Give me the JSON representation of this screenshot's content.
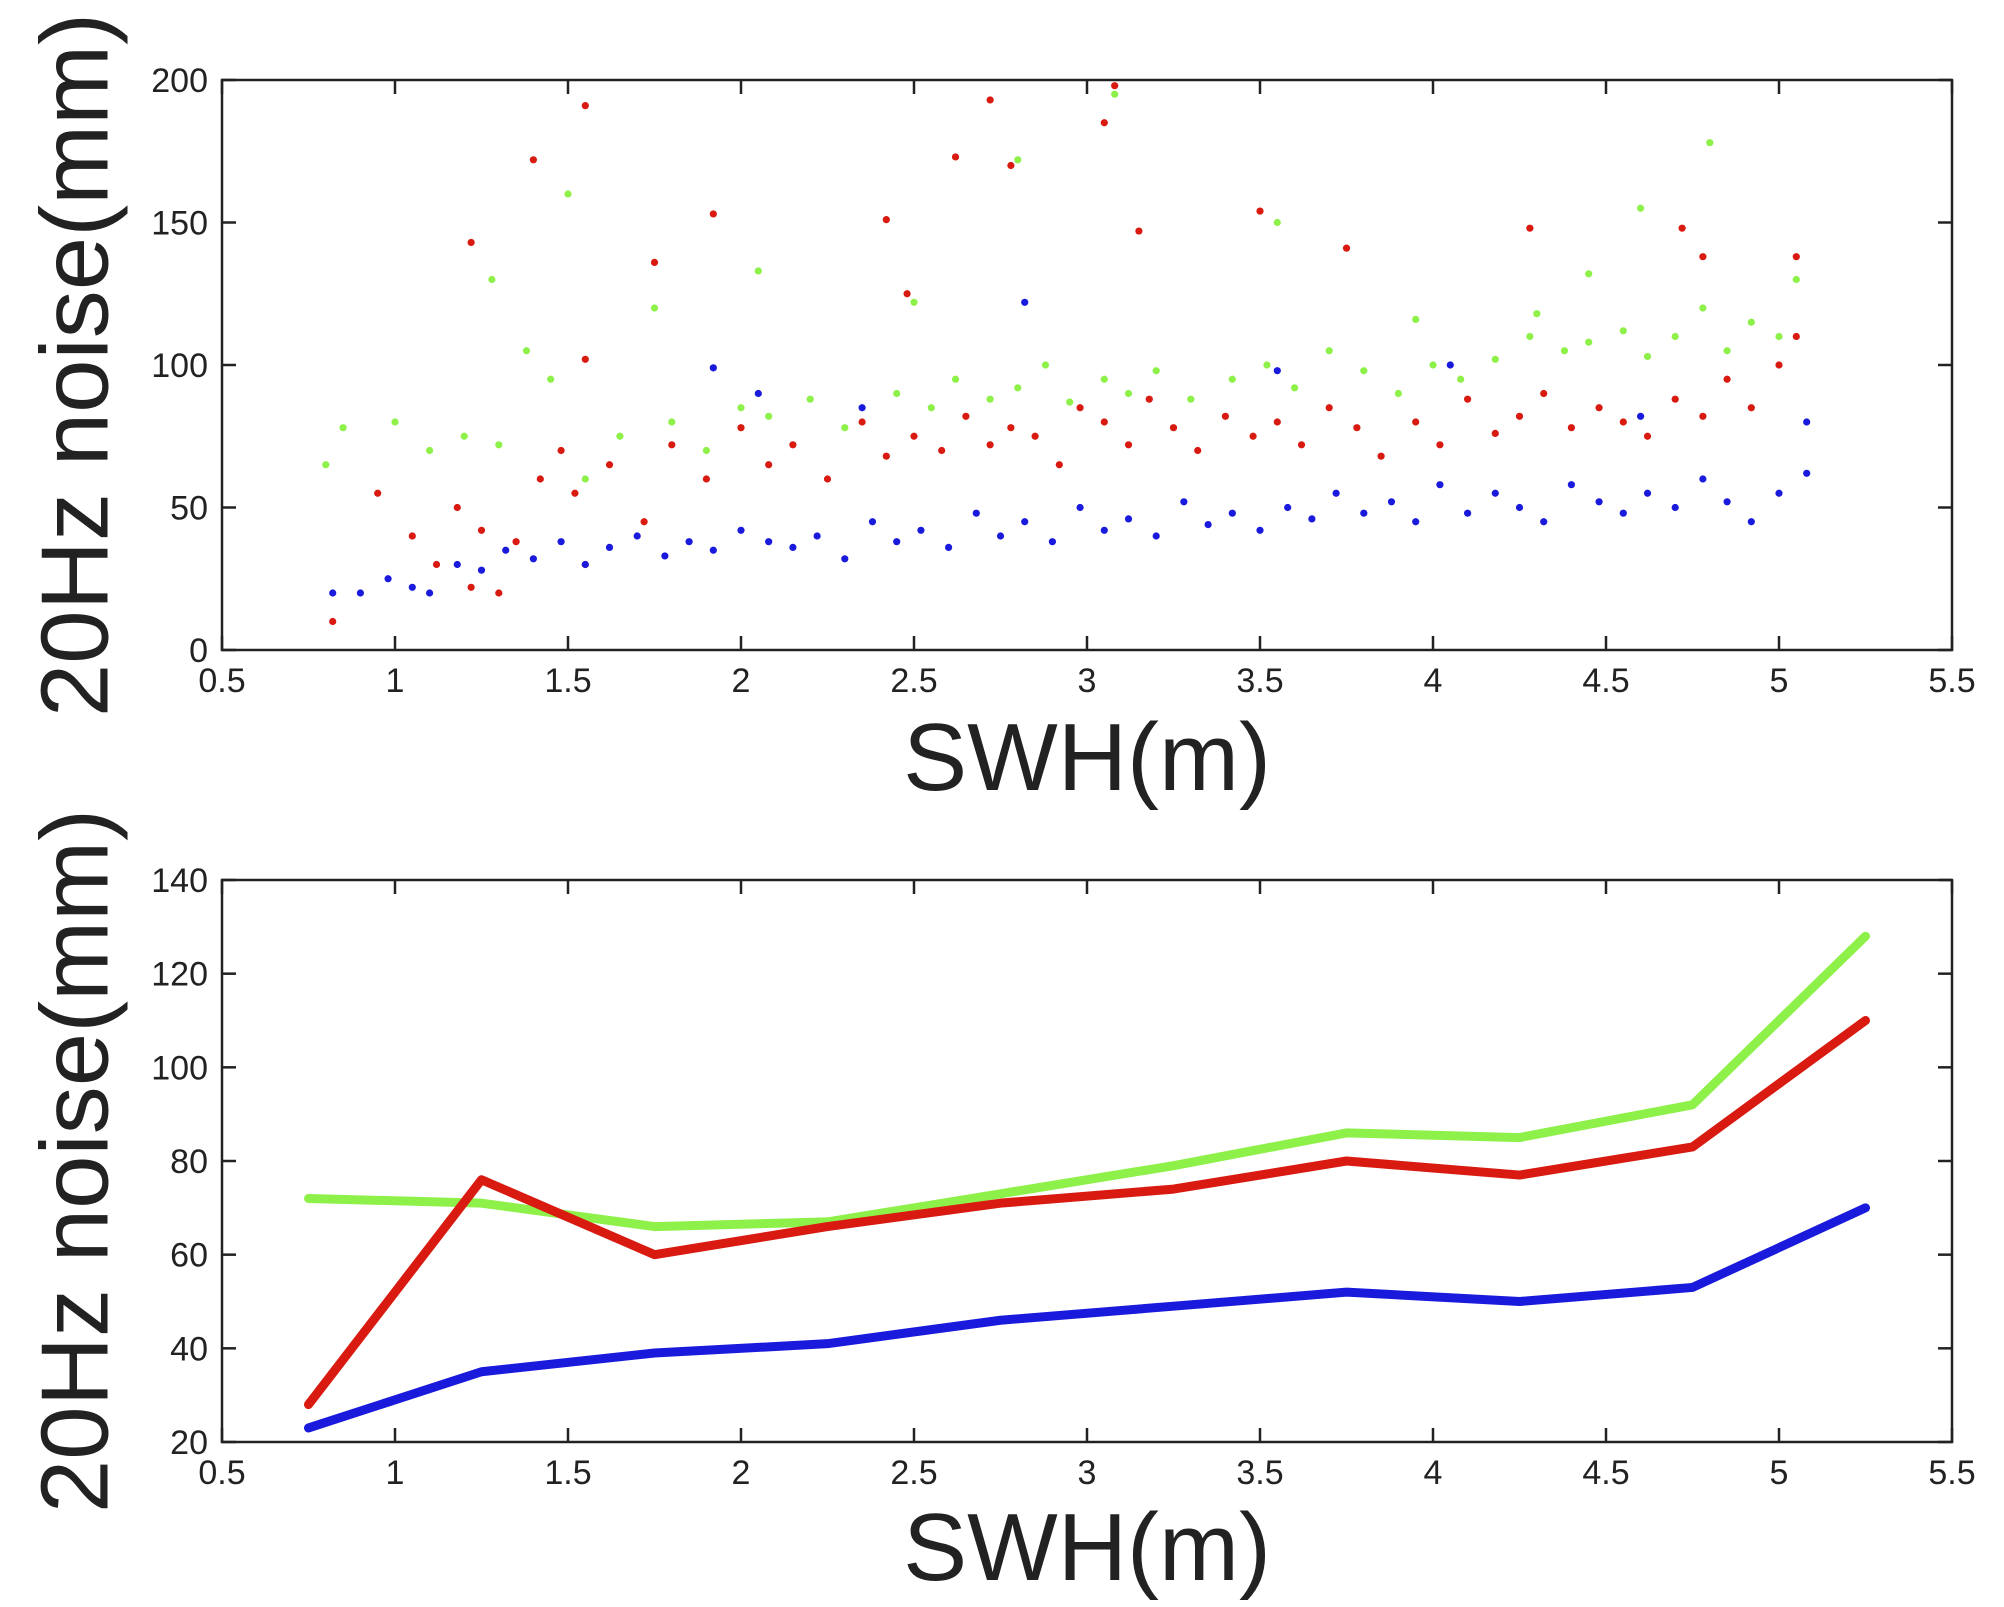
{
  "colors": {
    "green": "#8ef14a",
    "red": "#d81a10",
    "blue": "#1a1adc",
    "axis": "#222222"
  },
  "chart_data": [
    {
      "type": "scatter",
      "title": "",
      "xlabel": "SWH(m)",
      "ylabel": "20Hz noise(mm)",
      "xlim": [
        0.5,
        5.5
      ],
      "ylim": [
        0,
        200
      ],
      "xticks": [
        0.5,
        1,
        1.5,
        2,
        2.5,
        3,
        3.5,
        4,
        4.5,
        5,
        5.5
      ],
      "xtick_labels": [
        "0.5",
        "1",
        "1.5",
        "2",
        "2.5",
        "3",
        "3.5",
        "4",
        "4.5",
        "5",
        "5.5"
      ],
      "yticks": [
        0,
        50,
        100,
        150,
        200
      ],
      "ytick_labels": [
        "0",
        "50",
        "100",
        "150",
        "200"
      ],
      "grid": false,
      "series": [
        {
          "name": "green",
          "color": "#8ef14a",
          "x": [
            0.8,
            0.85,
            1.0,
            1.1,
            1.2,
            1.3,
            1.38,
            1.45,
            1.55,
            1.65,
            1.8,
            1.9,
            2.0,
            2.08,
            2.2,
            2.3,
            2.45,
            2.55,
            2.62,
            2.72,
            2.8,
            2.88,
            2.95,
            3.05,
            3.12,
            3.2,
            3.3,
            3.42,
            3.52,
            3.6,
            3.7,
            3.8,
            3.9,
            4.0,
            4.08,
            4.18,
            4.28,
            4.38,
            4.45,
            4.55,
            4.62,
            4.7,
            4.78,
            4.85,
            4.92,
            5.0,
            5.05,
            1.28,
            1.5,
            2.05,
            2.8,
            3.08,
            3.55,
            4.45,
            4.6,
            4.8,
            4.3,
            3.95,
            2.5,
            1.75
          ],
          "y": [
            65,
            78,
            80,
            70,
            75,
            72,
            105,
            95,
            60,
            75,
            80,
            70,
            85,
            82,
            88,
            78,
            90,
            85,
            95,
            88,
            92,
            100,
            87,
            95,
            90,
            98,
            88,
            95,
            100,
            92,
            105,
            98,
            90,
            100,
            95,
            102,
            110,
            105,
            108,
            112,
            103,
            110,
            120,
            105,
            115,
            110,
            130,
            130,
            160,
            133,
            172,
            195,
            150,
            132,
            155,
            178,
            118,
            116,
            122,
            120
          ]
        },
        {
          "name": "red",
          "color": "#d81a10",
          "x": [
            0.82,
            0.95,
            1.05,
            1.12,
            1.18,
            1.22,
            1.25,
            1.3,
            1.35,
            1.42,
            1.48,
            1.52,
            1.55,
            1.62,
            1.72,
            1.8,
            1.9,
            2.0,
            2.08,
            2.15,
            2.25,
            2.35,
            2.42,
            2.5,
            2.58,
            2.65,
            2.72,
            2.78,
            2.85,
            2.92,
            2.98,
            3.05,
            3.12,
            3.18,
            3.25,
            3.32,
            3.4,
            3.48,
            3.55,
            3.62,
            3.7,
            3.78,
            3.85,
            3.95,
            4.02,
            4.1,
            4.18,
            4.25,
            4.32,
            4.4,
            4.48,
            4.55,
            4.62,
            4.7,
            4.78,
            4.85,
            4.92,
            5.0,
            5.05,
            1.22,
            1.4,
            1.55,
            1.75,
            1.92,
            2.42,
            2.62,
            2.72,
            2.78,
            3.05,
            3.08,
            3.5,
            3.75,
            4.28,
            4.78,
            5.05,
            1.55,
            2.48,
            3.15,
            4.72
          ],
          "y": [
            10,
            55,
            40,
            30,
            50,
            22,
            42,
            20,
            38,
            60,
            70,
            55,
            30,
            65,
            45,
            72,
            60,
            78,
            65,
            72,
            60,
            80,
            68,
            75,
            70,
            82,
            72,
            78,
            75,
            65,
            85,
            80,
            72,
            88,
            78,
            70,
            82,
            75,
            80,
            72,
            85,
            78,
            68,
            80,
            72,
            88,
            76,
            82,
            90,
            78,
            85,
            80,
            75,
            88,
            82,
            95,
            85,
            100,
            110,
            143,
            172,
            191,
            136,
            153,
            151,
            173,
            193,
            170,
            185,
            198,
            154,
            141,
            148,
            138,
            138,
            102,
            125,
            147,
            148
          ]
        },
        {
          "name": "blue",
          "color": "#1a1adc",
          "x": [
            0.82,
            0.9,
            0.98,
            1.05,
            1.1,
            1.18,
            1.25,
            1.32,
            1.4,
            1.48,
            1.55,
            1.62,
            1.7,
            1.78,
            1.85,
            1.92,
            2.0,
            2.08,
            2.15,
            2.22,
            2.3,
            2.38,
            2.45,
            2.52,
            2.6,
            2.68,
            2.75,
            2.82,
            2.9,
            2.98,
            3.05,
            3.12,
            3.2,
            3.28,
            3.35,
            3.42,
            3.5,
            3.58,
            3.65,
            3.72,
            3.8,
            3.88,
            3.95,
            4.02,
            4.1,
            4.18,
            4.25,
            4.32,
            4.4,
            4.48,
            4.55,
            4.62,
            4.7,
            4.78,
            4.85,
            4.92,
            5.0,
            5.08,
            1.92,
            2.05,
            2.35,
            2.82,
            3.55,
            4.05,
            4.6,
            5.08
          ],
          "y": [
            20,
            20,
            25,
            22,
            20,
            30,
            28,
            35,
            32,
            38,
            30,
            36,
            40,
            33,
            38,
            35,
            42,
            38,
            36,
            40,
            32,
            45,
            38,
            42,
            36,
            48,
            40,
            45,
            38,
            50,
            42,
            46,
            40,
            52,
            44,
            48,
            42,
            50,
            46,
            55,
            48,
            52,
            45,
            58,
            48,
            55,
            50,
            45,
            58,
            52,
            48,
            55,
            50,
            60,
            52,
            45,
            55,
            62,
            99,
            90,
            85,
            122,
            98,
            100,
            82,
            80
          ]
        }
      ]
    },
    {
      "type": "line",
      "title": "",
      "xlabel": "SWH(m)",
      "ylabel": "20Hz noise(mm)",
      "xlim": [
        0.5,
        5.5
      ],
      "ylim": [
        20,
        140
      ],
      "xticks": [
        0.5,
        1,
        1.5,
        2,
        2.5,
        3,
        3.5,
        4,
        4.5,
        5,
        5.5
      ],
      "xtick_labels": [
        "0.5",
        "1",
        "1.5",
        "2",
        "2.5",
        "3",
        "3.5",
        "4",
        "4.5",
        "5",
        "5.5"
      ],
      "yticks": [
        20,
        40,
        60,
        80,
        100,
        120,
        140
      ],
      "ytick_labels": [
        "20",
        "40",
        "60",
        "80",
        "100",
        "120",
        "140"
      ],
      "grid": false,
      "x": [
        0.75,
        1.25,
        1.75,
        2.25,
        2.75,
        3.25,
        3.75,
        4.25,
        4.75,
        5.25
      ],
      "series": [
        {
          "name": "green",
          "color": "#8ef14a",
          "values": [
            72,
            71,
            66,
            67,
            73,
            79,
            86,
            85,
            92,
            128
          ]
        },
        {
          "name": "red",
          "color": "#d81a10",
          "values": [
            28,
            76,
            60,
            66,
            71,
            74,
            80,
            77,
            83,
            110
          ]
        },
        {
          "name": "blue",
          "color": "#1a1adc",
          "values": [
            23,
            35,
            39,
            41,
            46,
            49,
            52,
            50,
            53,
            70
          ]
        }
      ]
    }
  ]
}
